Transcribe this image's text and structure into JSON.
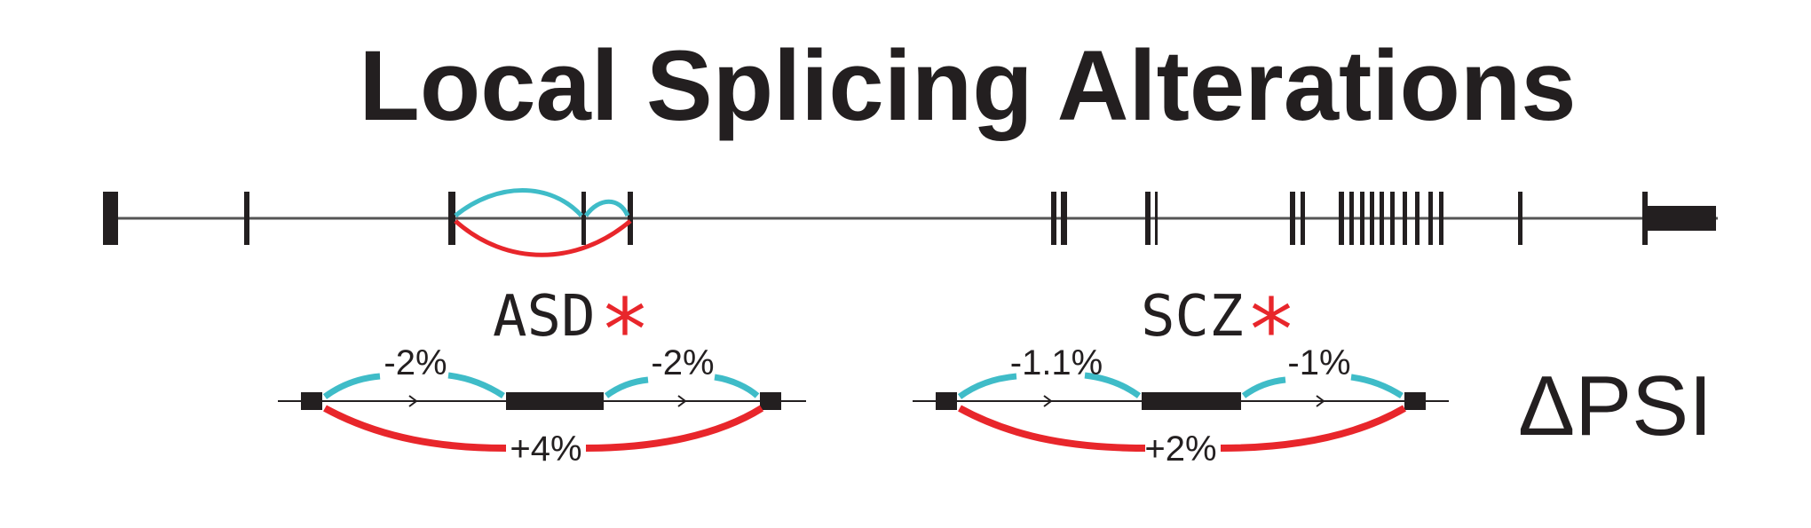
{
  "title": "Local Splicing Alterations",
  "colors": {
    "ink": "#231f20",
    "skip": "#3fbcc8",
    "include": "#e8262b",
    "line": "#555555"
  },
  "groups": [
    {
      "label": "ASD",
      "significance": "*",
      "delta_left": "-2%",
      "delta_right": "-2%",
      "delta_long": "+4%"
    },
    {
      "label": "SCZ",
      "significance": "*",
      "delta_left": "-1.1%",
      "delta_right": "-1%",
      "delta_long": "+2%"
    }
  ],
  "metric_label": "ΔPSI"
}
